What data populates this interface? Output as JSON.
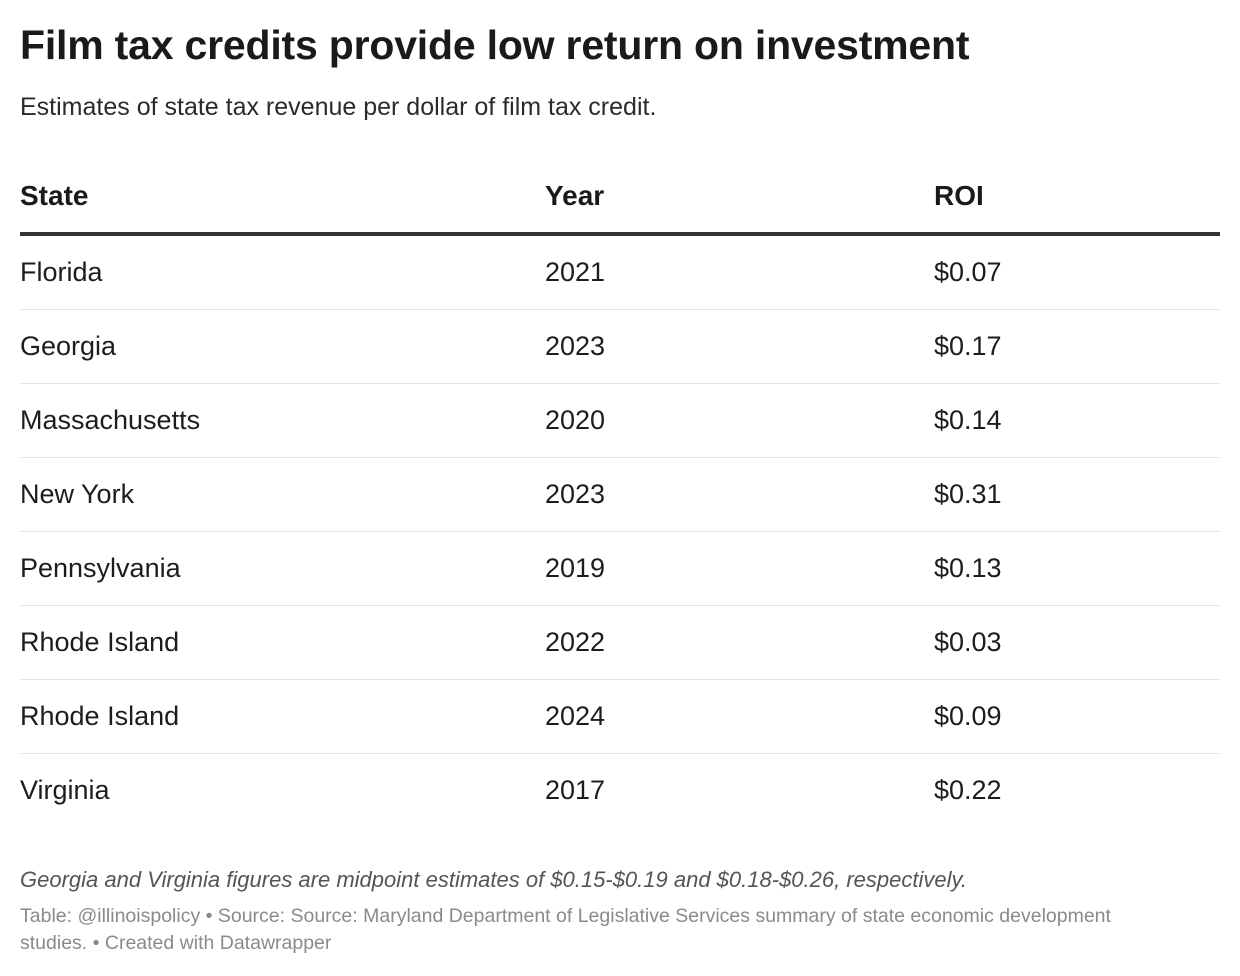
{
  "chart_data": {
    "type": "table",
    "title": "Film tax credits provide low return on investment",
    "subtitle": "Estimates of state tax revenue per dollar of film tax credit.",
    "columns": [
      "State",
      "Year",
      "ROI"
    ],
    "rows": [
      [
        "Florida",
        "2021",
        "$0.07"
      ],
      [
        "Georgia",
        "2023",
        "$0.17"
      ],
      [
        "Massachusetts",
        "2020",
        "$0.14"
      ],
      [
        "New York",
        "2023",
        "$0.31"
      ],
      [
        "Pennsylvania",
        "2019",
        "$0.13"
      ],
      [
        "Rhode Island",
        "2022",
        "$0.03"
      ],
      [
        "Rhode Island",
        "2024",
        "$0.09"
      ],
      [
        "Virginia",
        "2017",
        "$0.22"
      ]
    ],
    "notes": "Georgia and Virginia figures are midpoint estimates of $0.15-$0.19 and $0.18-$0.26, respectively.",
    "footer": "Table: @illinoispolicy • Source: Source: Maryland Department of Legislative Services summary of state economic development studies.  • Created with Datawrapper"
  }
}
